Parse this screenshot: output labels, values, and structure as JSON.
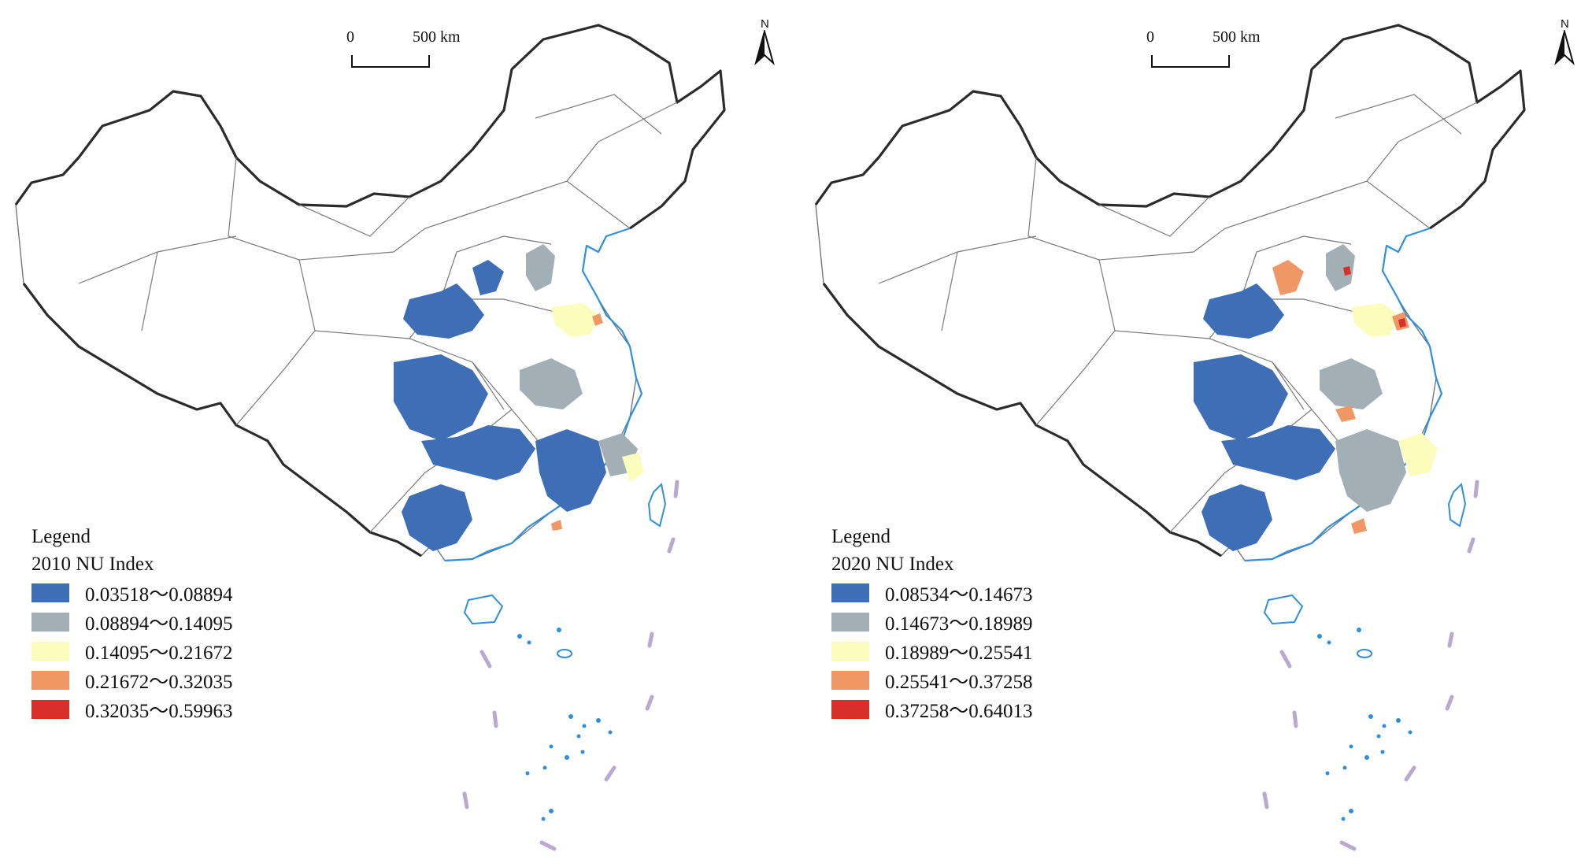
{
  "panels": [
    {
      "scale": {
        "zero": "0",
        "distance": "500 km"
      },
      "north": "N",
      "legend": {
        "title": "Legend",
        "subtitle": "2010 NU Index",
        "classes": [
          {
            "range": "0.03518～0.08894",
            "color": "#3e6eb5"
          },
          {
            "range": "0.08894～0.14095",
            "color": "#a2b0b6"
          },
          {
            "range": "0.14095～0.21672",
            "color": "#fcfcbd"
          },
          {
            "range": "0.21672～0.32035",
            "color": "#ef9866"
          },
          {
            "range": "0.32035～0.59963",
            "color": "#d7302a"
          }
        ]
      }
    },
    {
      "scale": {
        "zero": "0",
        "distance": "500 km"
      },
      "north": "N",
      "legend": {
        "title": "Legend",
        "subtitle": "2020 NU Index",
        "classes": [
          {
            "range": "0.08534～0.14673",
            "color": "#3e6eb5"
          },
          {
            "range": "0.14673～0.18989",
            "color": "#a2b0b6"
          },
          {
            "range": "0.18989～0.25541",
            "color": "#fcfcbd"
          },
          {
            "range": "0.25541～0.37258",
            "color": "#ef9866"
          },
          {
            "range": "0.37258～0.64013",
            "color": "#d7302a"
          }
        ]
      }
    }
  ]
}
